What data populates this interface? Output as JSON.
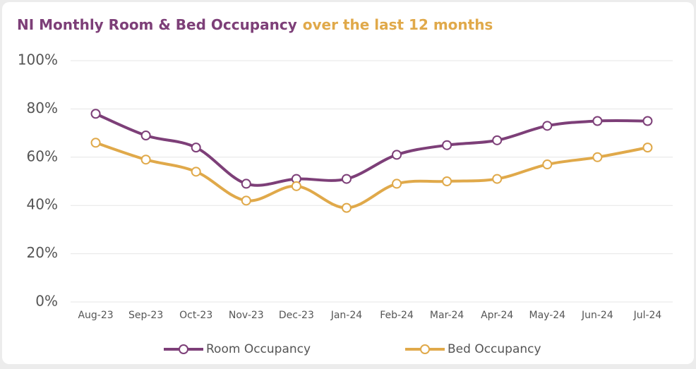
{
  "chart_data": {
    "type": "line",
    "title": "NI Monthly Room & Bed Occupancy",
    "subtitle": "over the last 12 months",
    "categories": [
      "Aug-23",
      "Sep-23",
      "Oct-23",
      "Nov-23",
      "Dec-23",
      "Jan-24",
      "Feb-24",
      "Mar-24",
      "Apr-24",
      "May-24",
      "Jun-24",
      "Jul-24"
    ],
    "series": [
      {
        "name": "Room Occupancy",
        "color": "#7d3f78",
        "values": [
          78,
          69,
          64,
          49,
          51,
          51,
          61,
          65,
          67,
          73,
          75,
          75
        ]
      },
      {
        "name": "Bed Occupancy",
        "color": "#e0a94a",
        "values": [
          66,
          59,
          54,
          42,
          48,
          39,
          49,
          50,
          51,
          57,
          60,
          64
        ]
      }
    ],
    "ylim": [
      0,
      100
    ],
    "yticks": [
      {
        "value": 0,
        "label": "0%"
      },
      {
        "value": 20,
        "label": "20%"
      },
      {
        "value": 40,
        "label": "40%"
      },
      {
        "value": 60,
        "label": "60%"
      },
      {
        "value": 80,
        "label": "80%"
      },
      {
        "value": 100,
        "label": "100%"
      }
    ],
    "grid": true,
    "legend": "bottom"
  }
}
